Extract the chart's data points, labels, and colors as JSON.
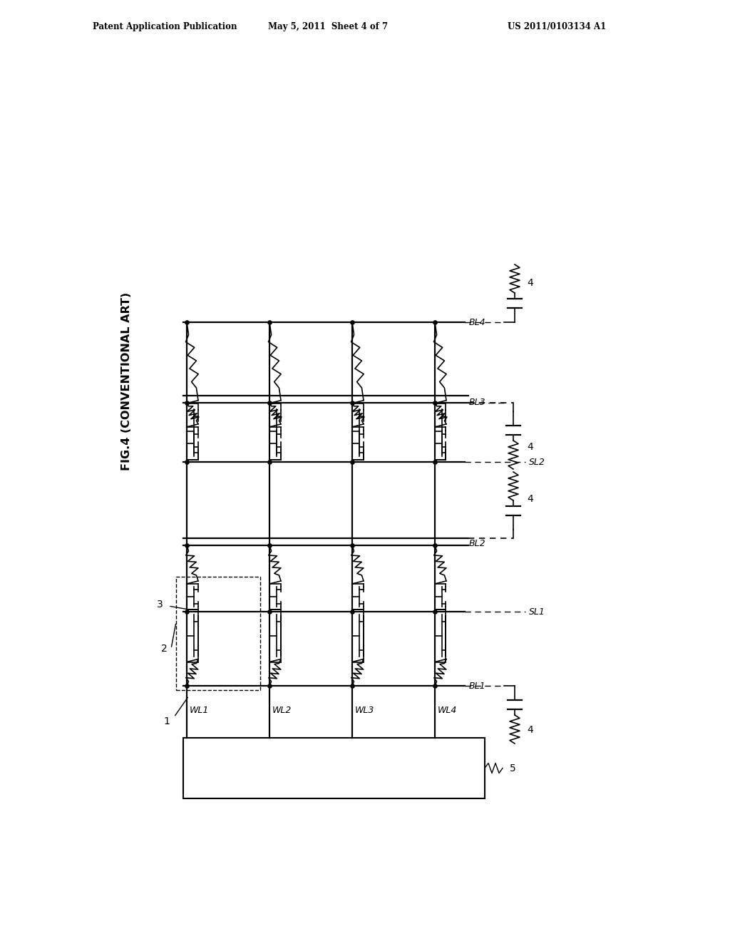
{
  "header_left": "Patent Application Publication",
  "header_center": "May 5, 2011  Sheet 4 of 7",
  "header_right": "US 2011/0103134 A1",
  "title": "FIG.4 (CONVENTIONAL ART)",
  "bg_color": "#ffffff",
  "line_color": "#000000",
  "wl_labels": [
    "WL1",
    "WL2",
    "WL3",
    "WL4"
  ],
  "bl_labels": [
    "BL1",
    "BL2",
    "BL3",
    "BL4"
  ],
  "sl_labels": [
    "SL1",
    "SL2"
  ],
  "num_labels": [
    "1",
    "2",
    "3",
    "4",
    "5"
  ]
}
